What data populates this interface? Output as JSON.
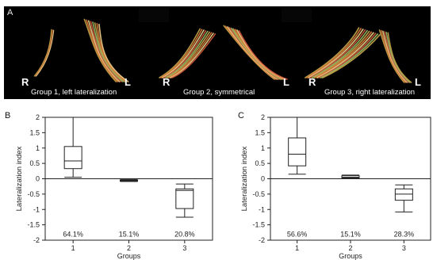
{
  "panel_a": {
    "letter": "A",
    "groups": [
      {
        "caption": "Group 1, left lateralization",
        "left_label": "R",
        "right_label": "L"
      },
      {
        "caption": "Group 2, symmetrical",
        "left_label": "R",
        "right_label": "L"
      },
      {
        "caption": "Group 3, right lateralization",
        "left_label": "R",
        "right_label": "L"
      }
    ],
    "fiber_colors": [
      "#c9a84a",
      "#e07a3a",
      "#f2d18a",
      "#d0593a",
      "#9bbf6a"
    ]
  },
  "chart_data": [
    {
      "panel": "B",
      "type": "box",
      "ylabel": "Lateralization index",
      "xlabel": "Groups",
      "ylim": [
        -2,
        2
      ],
      "yticks": [
        "2",
        "1.5",
        "1",
        "0.5",
        "0",
        "-0.5",
        "-1",
        "-1.5",
        "-2"
      ],
      "categories": [
        "1",
        "2",
        "3"
      ],
      "boxes": [
        {
          "min": 0.05,
          "q1": 0.33,
          "median": 0.58,
          "q3": 1.05,
          "max": 2.0
        },
        {
          "min": -0.09,
          "q1": -0.07,
          "median": -0.06,
          "q3": -0.04,
          "max": -0.03
        },
        {
          "min": -1.25,
          "q1": -0.97,
          "median": -0.38,
          "q3": -0.33,
          "max": -0.17
        }
      ],
      "percentages": [
        "64.1%",
        "15.1%",
        "20.8%"
      ]
    },
    {
      "panel": "C",
      "type": "box",
      "ylabel": "Lateralization index",
      "xlabel": "Groups",
      "ylim": [
        -2,
        2
      ],
      "yticks": [
        "2",
        "1.5",
        "1",
        "0.5",
        "0",
        "-0.5",
        "-1",
        "-1.5",
        "-2"
      ],
      "categories": [
        "1",
        "2",
        "3"
      ],
      "boxes": [
        {
          "min": 0.15,
          "q1": 0.42,
          "median": 0.8,
          "q3": 1.33,
          "max": 2.0
        },
        {
          "min": 0.02,
          "q1": 0.03,
          "median": 0.05,
          "q3": 0.1,
          "max": 0.12
        },
        {
          "min": -1.08,
          "q1": -0.7,
          "median": -0.5,
          "q3": -0.33,
          "max": -0.2
        }
      ],
      "percentages": [
        "56.6%",
        "15.1%",
        "28.3%"
      ]
    }
  ]
}
